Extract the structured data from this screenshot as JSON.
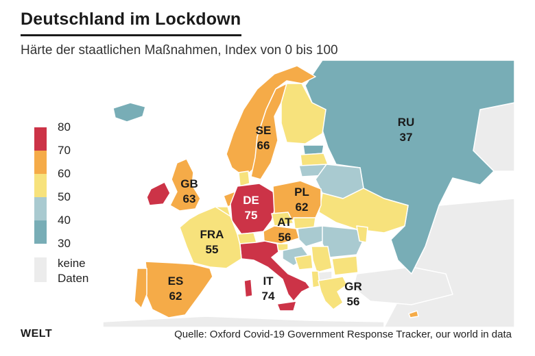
{
  "header": {
    "title": "Deutschland im Lockdown",
    "subtitle": "Härte der staatlichen Maßnahmen, Index von 0 bis 100"
  },
  "legend": {
    "ticks": [
      "80",
      "70",
      "60",
      "50",
      "40",
      "30"
    ],
    "bands": [
      {
        "from": 70,
        "to": 80,
        "color": "#cc3347"
      },
      {
        "from": 60,
        "to": 70,
        "color": "#f5ab48"
      },
      {
        "from": 50,
        "to": 60,
        "color": "#f7e27c"
      },
      {
        "from": 40,
        "to": 50,
        "color": "#a9cad0"
      },
      {
        "from": 30,
        "to": 40,
        "color": "#78adb6"
      }
    ],
    "no_data_label_line1": "keine",
    "no_data_label_line2": "Daten",
    "no_data_color": "#ececec"
  },
  "countries": {
    "ru": {
      "code": "RU",
      "value": "37"
    },
    "se": {
      "code": "SE",
      "value": "66"
    },
    "gb": {
      "code": "GB",
      "value": "63"
    },
    "de": {
      "code": "DE",
      "value": "75"
    },
    "pl": {
      "code": "PL",
      "value": "62"
    },
    "at": {
      "code": "AT",
      "value": "56"
    },
    "fra": {
      "code": "FRA",
      "value": "55"
    },
    "es": {
      "code": "ES",
      "value": "62"
    },
    "it": {
      "code": "IT",
      "value": "74"
    },
    "gr": {
      "code": "GR",
      "value": "56"
    }
  },
  "footer": {
    "brand": "WELT",
    "source": "Quelle: Oxford Covid-19 Government Response Tracker, our world in data"
  }
}
